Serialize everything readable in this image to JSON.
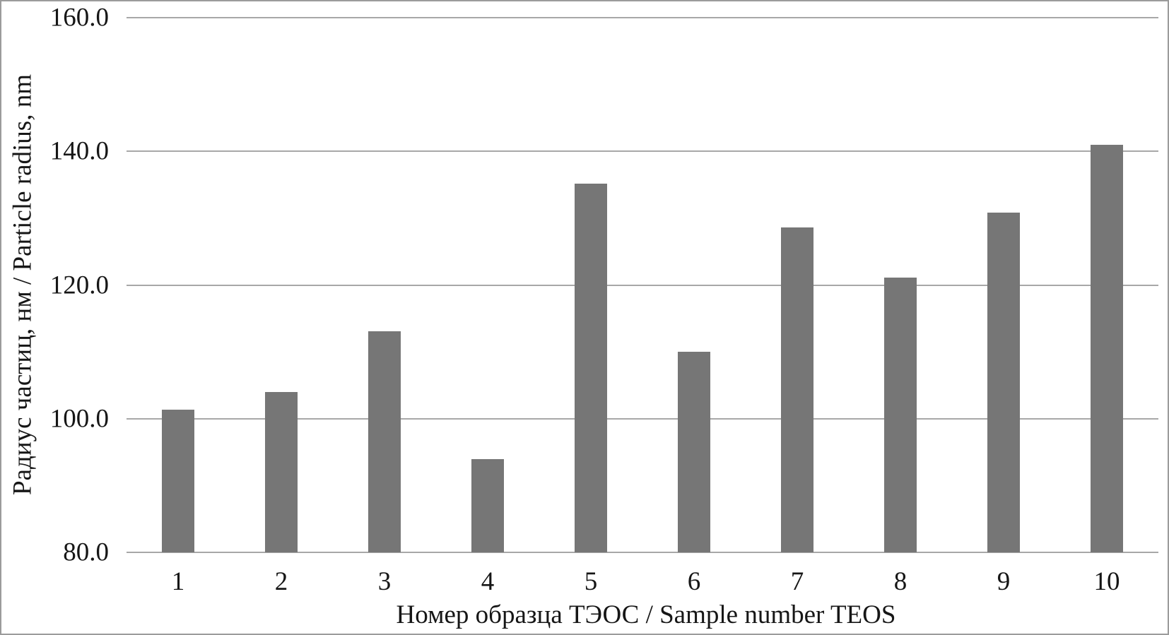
{
  "chart_data": {
    "type": "bar",
    "categories": [
      "1",
      "2",
      "3",
      "4",
      "5",
      "6",
      "7",
      "8",
      "9",
      "10"
    ],
    "values": [
      101.3,
      104.0,
      113.1,
      94.0,
      135.2,
      110.0,
      128.6,
      121.1,
      130.8,
      141.0
    ],
    "title": "",
    "xlabel": "Номер образца ТЭОС / Sample number TEOS",
    "ylabel": "Радиус частиц, нм / Particle radius, nm",
    "ylim": [
      80,
      160
    ],
    "ytick_step": 20,
    "ytick_labels": [
      "80.0",
      "100.0",
      "120.0",
      "140.0",
      "160.0"
    ],
    "grid": true,
    "legend": "none",
    "bar_color": "#767676",
    "gridline_color": "#a8a8a8",
    "frame_color": "#9b9b9b",
    "text_color": "#161616"
  }
}
